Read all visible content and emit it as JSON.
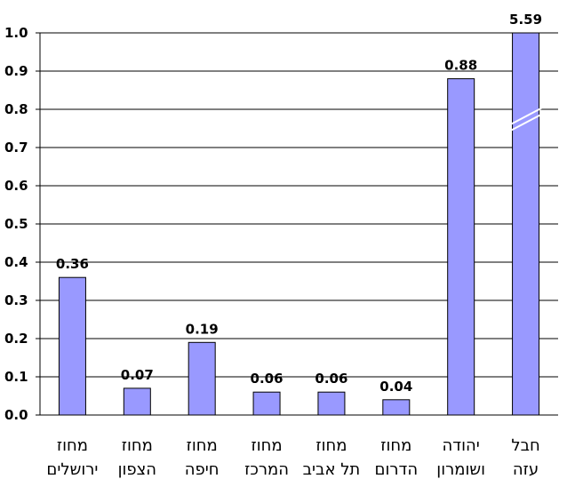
{
  "chart_data": {
    "type": "bar",
    "categories": [
      [
        "מחוז",
        "ירושלים"
      ],
      [
        "מחוז",
        "הצפון"
      ],
      [
        "מחוז",
        "חיפה"
      ],
      [
        "מחוז",
        "המרכז"
      ],
      [
        "מחוז",
        "תל אביב"
      ],
      [
        "מחוז",
        "הדרום"
      ],
      [
        "יהודה",
        "ושומרון"
      ],
      [
        "חבל",
        "עזה"
      ]
    ],
    "values": [
      0.36,
      0.07,
      0.19,
      0.06,
      0.06,
      0.04,
      0.88,
      5.59
    ],
    "data_labels": [
      "0.36",
      "0.07",
      "0.19",
      "0.06",
      "0.06",
      "0.04",
      "0.88",
      "5.59"
    ],
    "broken_bar_index": 7,
    "ylim": [
      0,
      1.0
    ],
    "yticks": [
      "0.0",
      "0.1",
      "0.2",
      "0.3",
      "0.4",
      "0.5",
      "0.6",
      "0.7",
      "0.8",
      "0.9",
      "1.0"
    ],
    "grid": true,
    "bar_color": "#9999ff",
    "title": "",
    "xlabel": "",
    "ylabel": ""
  }
}
